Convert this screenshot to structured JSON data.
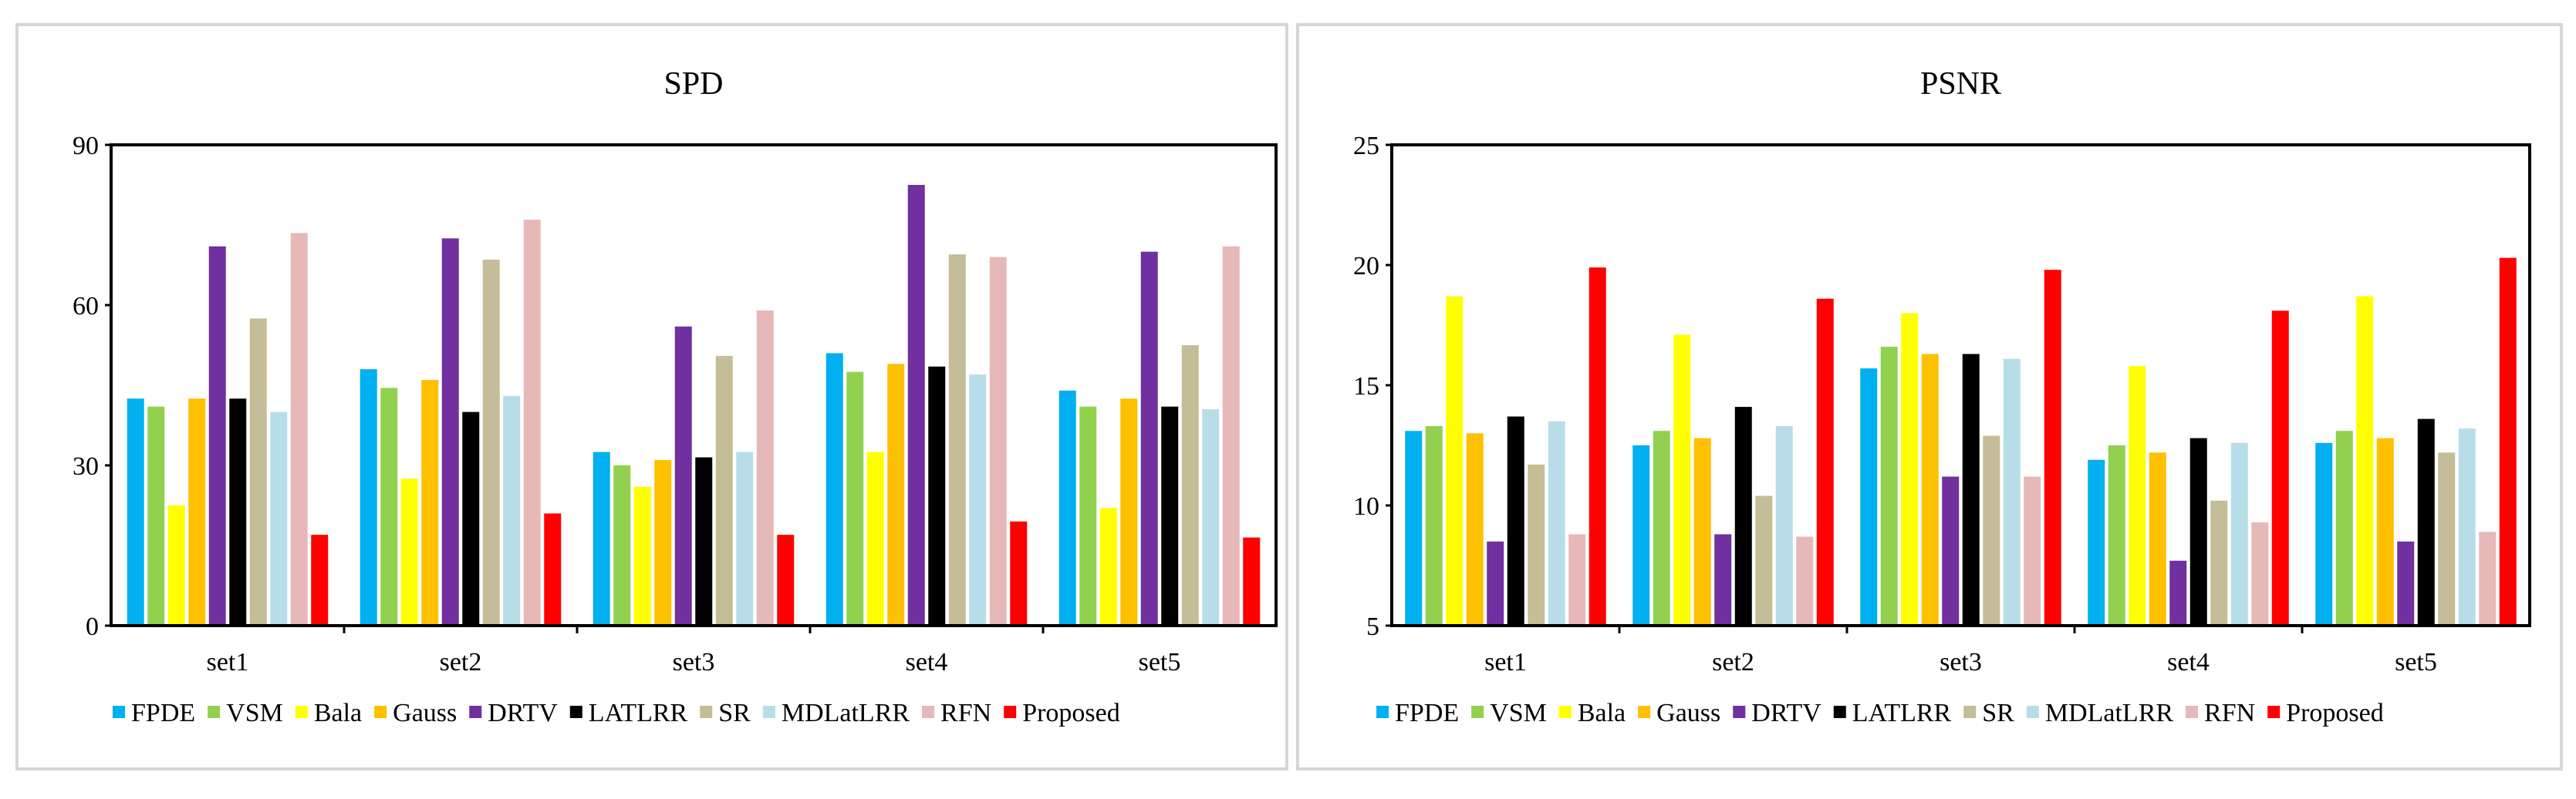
{
  "series_names": [
    "FPDE",
    "VSM",
    "Bala",
    "Gauss",
    "DRTV",
    "LATLRR",
    "SR",
    "MDLatLRR",
    "RFN",
    "Proposed"
  ],
  "colors": [
    "#00b0f0",
    "#92d050",
    "#ffff00",
    "#ffc000",
    "#7030a0",
    "#000000",
    "#c4bd97",
    "#b7dee8",
    "#e6b9b8",
    "#ff0000"
  ],
  "chart_data": [
    {
      "type": "bar",
      "title": "SPD",
      "categories": [
        "set1",
        "set2",
        "set3",
        "set4",
        "set5"
      ],
      "ylim": [
        0,
        90
      ],
      "yticks": [
        0,
        30,
        60,
        90
      ],
      "xlabel": "",
      "ylabel": "",
      "legend": "bottom",
      "series": [
        {
          "name": "FPDE",
          "values": [
            42.5,
            48,
            32.5,
            51,
            44
          ]
        },
        {
          "name": "VSM",
          "values": [
            41,
            44.5,
            30,
            47.5,
            41
          ]
        },
        {
          "name": "Bala",
          "values": [
            22.5,
            27.5,
            26,
            32.5,
            22
          ]
        },
        {
          "name": "Gauss",
          "values": [
            42.5,
            46,
            31,
            49,
            42.5
          ]
        },
        {
          "name": "DRTV",
          "values": [
            71,
            72.5,
            56,
            82.5,
            70
          ]
        },
        {
          "name": "LATLRR",
          "values": [
            42.5,
            40,
            31.5,
            48.5,
            41
          ]
        },
        {
          "name": "SR",
          "values": [
            57.5,
            68.5,
            50.5,
            69.5,
            52.5
          ]
        },
        {
          "name": "MDLatLRR",
          "values": [
            40,
            43,
            32.5,
            47,
            40.5
          ]
        },
        {
          "name": "RFN",
          "values": [
            73.5,
            76,
            59,
            69,
            71
          ]
        },
        {
          "name": "Proposed",
          "values": [
            17,
            21,
            17,
            19.5,
            16.5
          ]
        }
      ]
    },
    {
      "type": "bar",
      "title": "PSNR",
      "categories": [
        "set1",
        "set2",
        "set3",
        "set4",
        "set5"
      ],
      "ylim": [
        5,
        25
      ],
      "yticks": [
        5,
        10,
        15,
        20,
        25
      ],
      "xlabel": "",
      "ylabel": "",
      "legend": "bottom",
      "series": [
        {
          "name": "FPDE",
          "values": [
            13.1,
            12.5,
            15.7,
            11.9,
            12.6
          ]
        },
        {
          "name": "VSM",
          "values": [
            13.3,
            13.1,
            16.6,
            12.5,
            13.1
          ]
        },
        {
          "name": "Bala",
          "values": [
            18.7,
            17.1,
            18.0,
            15.8,
            18.7
          ]
        },
        {
          "name": "Gauss",
          "values": [
            13.0,
            12.8,
            16.3,
            12.2,
            12.8
          ]
        },
        {
          "name": "DRTV",
          "values": [
            8.5,
            8.8,
            11.2,
            7.7,
            8.5
          ]
        },
        {
          "name": "LATLRR",
          "values": [
            13.7,
            14.1,
            16.3,
            12.8,
            13.6
          ]
        },
        {
          "name": "SR",
          "values": [
            11.7,
            10.4,
            12.9,
            10.2,
            12.2
          ]
        },
        {
          "name": "MDLatLRR",
          "values": [
            13.5,
            13.3,
            16.1,
            12.6,
            13.2
          ]
        },
        {
          "name": "RFN",
          "values": [
            8.8,
            8.7,
            11.2,
            9.3,
            8.9
          ]
        },
        {
          "name": "Proposed",
          "values": [
            19.9,
            18.6,
            19.8,
            18.1,
            20.3
          ]
        }
      ]
    }
  ]
}
